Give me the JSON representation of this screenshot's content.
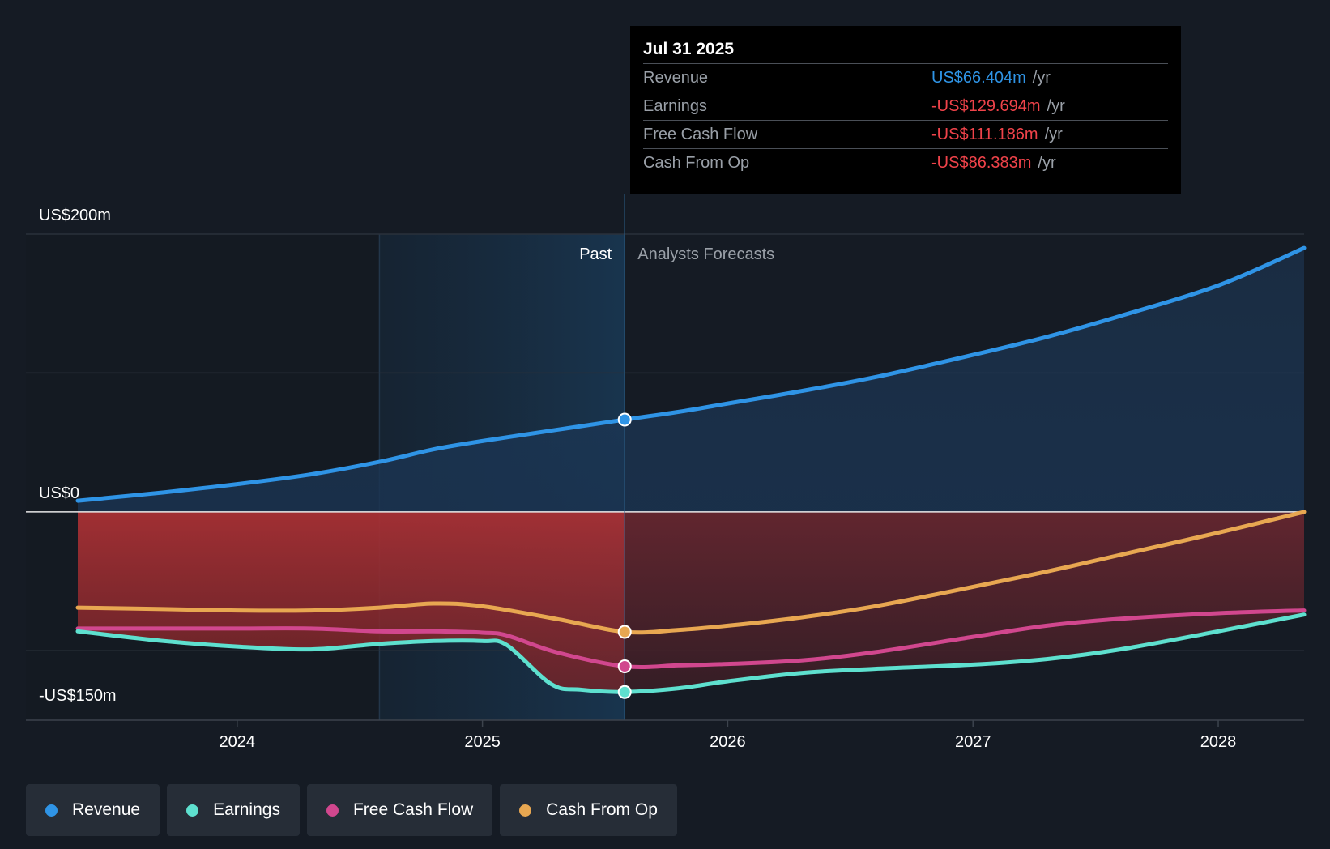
{
  "chart_data": {
    "type": "line",
    "title": "",
    "xlabel": "",
    "ylabel": "",
    "y_labels": {
      "top": "US$200m",
      "zero": "US$0",
      "bottom": "-US$150m"
    },
    "ylim": [
      -150,
      200
    ],
    "xlim": [
      2023.35,
      2028.35
    ],
    "x_ticks": [
      2024,
      2025,
      2026,
      2027,
      2028
    ],
    "x_tick_labels": [
      "2024",
      "2025",
      "2026",
      "2027",
      "2028"
    ],
    "past_label": "Past",
    "forecast_label": "Analysts Forecasts",
    "shaded_start_x": 2024.58,
    "divider_x": 2025.58,
    "series": [
      {
        "name": "Revenue",
        "key": "revenue",
        "color": "#2f94e6",
        "points": [
          [
            2023.35,
            8
          ],
          [
            2023.7,
            14
          ],
          [
            2024.0,
            20
          ],
          [
            2024.3,
            27
          ],
          [
            2024.58,
            36
          ],
          [
            2024.8,
            45
          ],
          [
            2025.0,
            51
          ],
          [
            2025.3,
            59
          ],
          [
            2025.58,
            66.4
          ],
          [
            2025.8,
            72
          ],
          [
            2026.0,
            78
          ],
          [
            2026.3,
            87
          ],
          [
            2026.6,
            97
          ],
          [
            2027.0,
            113
          ],
          [
            2027.3,
            126
          ],
          [
            2027.6,
            141
          ],
          [
            2028.0,
            163
          ],
          [
            2028.35,
            190
          ]
        ]
      },
      {
        "name": "Earnings",
        "key": "earnings",
        "color": "#5ee0cf",
        "points": [
          [
            2023.35,
            -86
          ],
          [
            2023.7,
            -93
          ],
          [
            2024.0,
            -97
          ],
          [
            2024.3,
            -99
          ],
          [
            2024.58,
            -95
          ],
          [
            2024.8,
            -93
          ],
          [
            2025.0,
            -93
          ],
          [
            2025.1,
            -96
          ],
          [
            2025.28,
            -124
          ],
          [
            2025.4,
            -128
          ],
          [
            2025.58,
            -129.7
          ],
          [
            2025.8,
            -127
          ],
          [
            2026.0,
            -122
          ],
          [
            2026.3,
            -116
          ],
          [
            2026.6,
            -113
          ],
          [
            2027.0,
            -110
          ],
          [
            2027.3,
            -106
          ],
          [
            2027.6,
            -99
          ],
          [
            2028.0,
            -86
          ],
          [
            2028.35,
            -74
          ]
        ]
      },
      {
        "name": "Free Cash Flow",
        "key": "fcf",
        "color": "#d1478e",
        "points": [
          [
            2023.35,
            -84
          ],
          [
            2023.7,
            -84
          ],
          [
            2024.0,
            -84
          ],
          [
            2024.3,
            -84
          ],
          [
            2024.58,
            -86
          ],
          [
            2024.8,
            -86
          ],
          [
            2025.0,
            -87
          ],
          [
            2025.1,
            -89
          ],
          [
            2025.3,
            -101
          ],
          [
            2025.58,
            -111.2
          ],
          [
            2025.8,
            -110.5
          ],
          [
            2026.0,
            -109.5
          ],
          [
            2026.3,
            -107
          ],
          [
            2026.6,
            -101
          ],
          [
            2027.0,
            -90
          ],
          [
            2027.3,
            -82
          ],
          [
            2027.6,
            -77
          ],
          [
            2028.0,
            -73
          ],
          [
            2028.35,
            -71
          ]
        ]
      },
      {
        "name": "Cash From Op",
        "key": "cfo",
        "color": "#e8a751",
        "points": [
          [
            2023.35,
            -69
          ],
          [
            2023.7,
            -70
          ],
          [
            2024.0,
            -71
          ],
          [
            2024.3,
            -71
          ],
          [
            2024.58,
            -69
          ],
          [
            2024.8,
            -66
          ],
          [
            2025.0,
            -68
          ],
          [
            2025.3,
            -77
          ],
          [
            2025.58,
            -86.4
          ],
          [
            2025.8,
            -85
          ],
          [
            2026.0,
            -82
          ],
          [
            2026.3,
            -76
          ],
          [
            2026.6,
            -68
          ],
          [
            2027.0,
            -54
          ],
          [
            2027.3,
            -43
          ],
          [
            2027.6,
            -31
          ],
          [
            2028.0,
            -15
          ],
          [
            2028.35,
            0
          ]
        ]
      }
    ]
  },
  "tooltip": {
    "date": "Jul 31 2025",
    "rows": [
      {
        "label": "Revenue",
        "value": "US$66.404m",
        "unit": "/yr",
        "color": "#2f94e6"
      },
      {
        "label": "Earnings",
        "value": "-US$129.694m",
        "unit": "/yr",
        "color": "#f0434a"
      },
      {
        "label": "Free Cash Flow",
        "value": "-US$111.186m",
        "unit": "/yr",
        "color": "#f0434a"
      },
      {
        "label": "Cash From Op",
        "value": "-US$86.383m",
        "unit": "/yr",
        "color": "#f0434a"
      }
    ]
  },
  "legend": [
    {
      "label": "Revenue",
      "color": "#2f94e6"
    },
    {
      "label": "Earnings",
      "color": "#5ee0cf"
    },
    {
      "label": "Free Cash Flow",
      "color": "#d1478e"
    },
    {
      "label": "Cash From Op",
      "color": "#e8a751"
    }
  ]
}
